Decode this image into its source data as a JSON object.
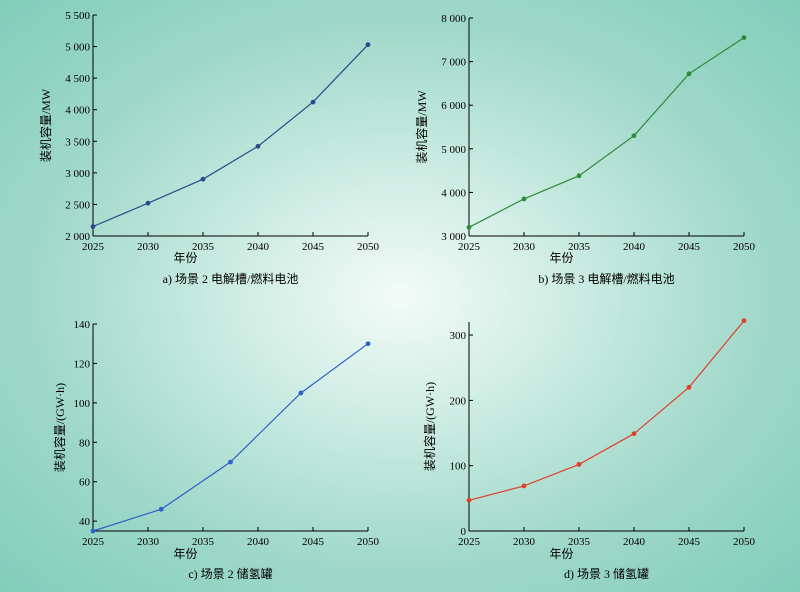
{
  "chart_data": [
    {
      "type": "line",
      "caption": "a) 场景 2 电解槽/燃料电池",
      "xlabel": "年份",
      "ylabel": "装机容量/MW",
      "x": [
        2025,
        2030,
        2035,
        2040,
        2045,
        2050
      ],
      "xticks": [
        "2025",
        "2030",
        "2035",
        "2040",
        "2045",
        "2050"
      ],
      "xlim": [
        2025,
        2050
      ],
      "ylim": [
        2000,
        5500
      ],
      "yticks": [
        2000,
        2500,
        3000,
        3500,
        4000,
        4500,
        5000,
        5500
      ],
      "ytick_labels": [
        "2 000",
        "2 500",
        "3 000",
        "3 500",
        "4 000",
        "4 500",
        "5 000",
        "5 500"
      ],
      "color": "#2a4a8c",
      "points": [
        [
          2025,
          2150
        ],
        [
          2030,
          2520
        ],
        [
          2035,
          2900
        ],
        [
          2040,
          3420
        ],
        [
          2045,
          4120
        ],
        [
          2050,
          5030
        ]
      ]
    },
    {
      "type": "line",
      "caption": "b) 场景 3 电解槽/燃料电池",
      "xlabel": "年份",
      "ylabel": "装机容量/MW",
      "x": [
        2025,
        2030,
        2035,
        2040,
        2045,
        2050
      ],
      "xticks": [
        "2025",
        "2030",
        "2035",
        "2040",
        "2045",
        "2050"
      ],
      "xlim": [
        2025,
        2050
      ],
      "ylim": [
        3000,
        8000
      ],
      "yticks": [
        3000,
        4000,
        5000,
        6000,
        7000,
        8000
      ],
      "ytick_labels": [
        "3 000",
        "4 000",
        "5 000",
        "6 000",
        "7 000",
        "8 000"
      ],
      "color": "#2f8a3a",
      "points": [
        [
          2025,
          3200
        ],
        [
          2030,
          3850
        ],
        [
          2035,
          4380
        ],
        [
          2040,
          5300
        ],
        [
          2045,
          6720
        ],
        [
          2050,
          7550
        ]
      ]
    },
    {
      "type": "line",
      "caption": "c) 场景 2 储氢罐",
      "xlabel": "年份",
      "ylabel": "装机容量/(GW·h)",
      "x": [
        2025,
        2030,
        2035,
        2040,
        2045,
        2050
      ],
      "xticks": [
        "2025",
        "2030",
        "2035",
        "2040",
        "2045",
        "2050"
      ],
      "xlim": [
        2025,
        2050
      ],
      "ylim": [
        35,
        140
      ],
      "yticks": [
        40,
        60,
        80,
        100,
        120,
        140
      ],
      "ytick_labels": [
        "40",
        "60",
        "80",
        "100",
        "120",
        "140"
      ],
      "color": "#2f62c8",
      "points": [
        [
          2025,
          35
        ],
        [
          2031.2,
          46
        ],
        [
          2037.5,
          70
        ],
        [
          2043.9,
          105
        ],
        [
          2050,
          130
        ]
      ]
    },
    {
      "type": "line",
      "caption": "d) 场景 3 储氢罐",
      "xlabel": "年份",
      "ylabel": "装机容量/(GW·h)",
      "x": [
        2025,
        2030,
        2035,
        2040,
        2045,
        2050
      ],
      "xticks": [
        "2025",
        "2030",
        "2035",
        "2040",
        "2045",
        "2050"
      ],
      "xlim": [
        2025,
        2050
      ],
      "ylim": [
        0,
        320
      ],
      "yticks": [
        0,
        100,
        200,
        300
      ],
      "ytick_labels": [
        "0",
        "100",
        "200",
        "300"
      ],
      "color": "#e0402a",
      "points": [
        [
          2025,
          47
        ],
        [
          2030,
          69
        ],
        [
          2035,
          102
        ],
        [
          2040,
          149
        ],
        [
          2045,
          220
        ],
        [
          2050,
          322
        ]
      ]
    }
  ]
}
